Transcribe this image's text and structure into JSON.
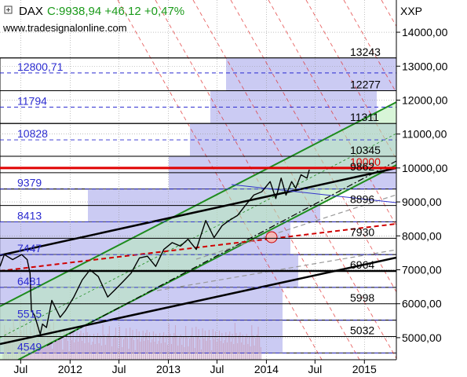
{
  "header": {
    "symbol": "DAX",
    "quote": "C:9938,94 +46,12 +0,47%",
    "source": "www.tradesignalonline.com",
    "exchange": "XXP",
    "quote_color": "#1a9a1a"
  },
  "chart_data": {
    "type": "line",
    "title": "DAX",
    "x_range": [
      "2011-04-15",
      "2015-04-30"
    ],
    "x_tick_labels": [
      {
        "label": "Jul",
        "date": "2011-07-01"
      },
      {
        "label": "2012",
        "date": "2012-01-01"
      },
      {
        "label": "Jul",
        "date": "2012-07-01"
      },
      {
        "label": "2013",
        "date": "2013-01-01"
      },
      {
        "label": "Jul",
        "date": "2013-07-01"
      },
      {
        "label": "2014",
        "date": "2014-01-01"
      },
      {
        "label": "Jul",
        "date": "2014-07-01"
      },
      {
        "label": "2015",
        "date": "2015-01-01"
      }
    ],
    "ylim": [
      4350,
      14950
    ],
    "y_ticks": [
      "14000,00",
      "13000,00",
      "12000,00",
      "11000,00",
      "10000,00",
      "9000,00",
      "8000,00",
      "7000,00",
      "6000,00",
      "5000,00"
    ],
    "price_series": {
      "name": "DAX",
      "dates": [
        "2011-04-15",
        "2011-05-01",
        "2011-06-01",
        "2011-07-05",
        "2011-07-25",
        "2011-08-05",
        "2011-08-10",
        "2011-08-22",
        "2011-09-12",
        "2011-09-20",
        "2011-10-05",
        "2011-10-25",
        "2011-11-25",
        "2011-12-15",
        "2012-01-15",
        "2012-02-15",
        "2012-03-15",
        "2012-04-15",
        "2012-05-20",
        "2012-06-15",
        "2012-07-10",
        "2012-08-15",
        "2012-09-15",
        "2012-10-15",
        "2012-11-15",
        "2012-12-15",
        "2013-01-15",
        "2013-02-15",
        "2013-03-15",
        "2013-04-15",
        "2013-05-20",
        "2013-06-20",
        "2013-07-20",
        "2013-08-15",
        "2013-09-15",
        "2013-10-15",
        "2013-11-15",
        "2013-12-15",
        "2014-01-15",
        "2014-02-05",
        "2014-02-25",
        "2014-03-15",
        "2014-04-05",
        "2014-04-20",
        "2014-05-10",
        "2014-06-01",
        "2014-06-10"
      ],
      "values": [
        7100,
        7450,
        7300,
        7450,
        7300,
        6900,
        5800,
        5650,
        5100,
        5400,
        5300,
        6100,
        5600,
        5800,
        6200,
        6700,
        7000,
        6800,
        6200,
        6400,
        6600,
        6900,
        7350,
        7400,
        7100,
        7600,
        7800,
        7700,
        7900,
        7600,
        8450,
        7950,
        8300,
        8450,
        8600,
        8900,
        9200,
        9300,
        9600,
        9100,
        9700,
        9200,
        9600,
        9400,
        9800,
        9700,
        9950
      ]
    },
    "horizontal_levels": [
      {
        "label": "13243",
        "value": 13243
      },
      {
        "label": "12800,71",
        "value": 12800.71
      },
      {
        "label": "12277",
        "value": 12277
      },
      {
        "label": "11794",
        "value": 11794
      },
      {
        "label": "11311",
        "value": 11311
      },
      {
        "label": "10828",
        "value": 10828
      },
      {
        "label": "10345",
        "value": 10345
      },
      {
        "label": "10000",
        "value": 10000
      },
      {
        "label": "9862",
        "value": 9862
      },
      {
        "label": "9379",
        "value": 9379
      },
      {
        "label": "8896",
        "value": 8896
      },
      {
        "label": "8413",
        "value": 8413
      },
      {
        "label": "7930",
        "value": 7930
      },
      {
        "label": "7447",
        "value": 7447
      },
      {
        "label": "6964",
        "value": 6964
      },
      {
        "label": "6481",
        "value": 6481
      },
      {
        "label": "5998",
        "value": 5998
      },
      {
        "label": "5515",
        "value": 5515
      },
      {
        "label": "5032",
        "value": 5032
      },
      {
        "label": "4549",
        "value": 4549
      }
    ],
    "grid": true,
    "legend": "none",
    "colors": {
      "level_blue": "#2b2bd0",
      "level_black": "#000000",
      "level_red": "#e00000",
      "channel_green": "#1e8c1e",
      "channel_fill": "#b8ecb8",
      "zone_fill": "#b9b9ef",
      "diagonal_red": "#e03030",
      "volume": "#c8a8c8"
    }
  }
}
